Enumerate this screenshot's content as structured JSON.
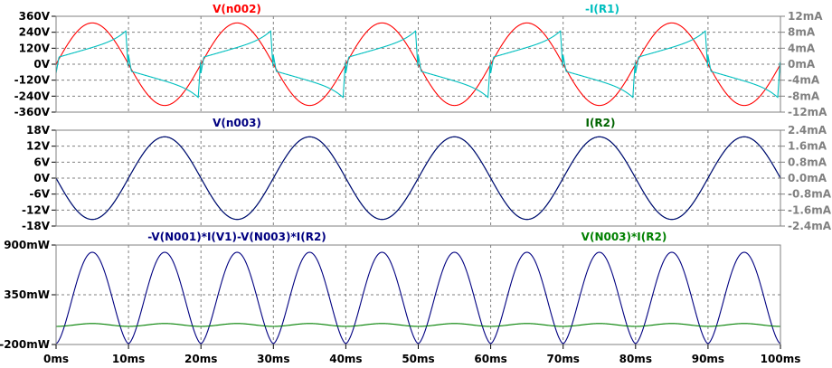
{
  "colors": {
    "red": "#ff0000",
    "cyan": "#00bfbf",
    "navy": "#000080",
    "green": "#008000",
    "darkgreen": "#006400",
    "grid": "#808080",
    "frame": "#808080",
    "bg": "#ffffff"
  },
  "x_axis": {
    "range": [
      0,
      100
    ],
    "unit": "ms",
    "ticks": [
      "0ms",
      "10ms",
      "20ms",
      "30ms",
      "40ms",
      "50ms",
      "60ms",
      "70ms",
      "80ms",
      "90ms",
      "100ms"
    ]
  },
  "chart_data": [
    {
      "type": "line",
      "x_range_ms": [
        0,
        100
      ],
      "left_axis": {
        "range": [
          -360,
          360
        ],
        "ticks": [
          "360V",
          "240V",
          "120V",
          "0V",
          "-120V",
          "-240V",
          "-360V"
        ]
      },
      "right_axis": {
        "range": [
          -12,
          12
        ],
        "ticks": [
          "12mA",
          "8mA",
          "4mA",
          "0mA",
          "-4mA",
          "-8mA",
          "-12mA"
        ]
      },
      "grid": true,
      "series": [
        {
          "name": "V(n002)",
          "axis": "left",
          "shape": "sine",
          "amplitude": 310,
          "freq_hz": 50,
          "phase_deg": 0,
          "color": "red",
          "label_color": "red"
        },
        {
          "name": "-I(R1)",
          "axis": "right",
          "shape": "rectifier-current",
          "peak_ma": 9,
          "freq_hz": 50,
          "color": "cyan",
          "label_color": "cyan"
        }
      ]
    },
    {
      "type": "line",
      "x_range_ms": [
        0,
        100
      ],
      "left_axis": {
        "range": [
          -18,
          18
        ],
        "ticks": [
          "18V",
          "12V",
          "6V",
          "0V",
          "-6V",
          "-12V",
          "-18V"
        ]
      },
      "right_axis": {
        "range": [
          -2.4,
          2.4
        ],
        "ticks": [
          "2.4mA",
          "1.6mA",
          "0.8mA",
          "0.0mA",
          "-0.8mA",
          "-1.6mA",
          "-2.4mA"
        ]
      },
      "grid": true,
      "series": [
        {
          "name": "V(n003)",
          "axis": "left",
          "shape": "sine",
          "amplitude": 15.5,
          "freq_hz": 50,
          "phase_deg": 180,
          "color": "green",
          "label_color": "navy"
        },
        {
          "name": "I(R2)",
          "axis": "right",
          "shape": "sine",
          "amplitude": 2.07,
          "freq_hz": 50,
          "phase_deg": 180,
          "color": "navy",
          "label_color": "darkgreen"
        }
      ]
    },
    {
      "type": "line",
      "x_range_ms": [
        0,
        100
      ],
      "left_axis": {
        "range": [
          -200,
          900
        ],
        "ticks": [
          "900mW",
          "350mW",
          "-200mW"
        ]
      },
      "grid": true,
      "series": [
        {
          "name": "-V(N001)*I(V1)-V(N003)*I(R2)",
          "axis": "left",
          "shape": "rectified-power",
          "peak_mw": 820,
          "min_mw": -190,
          "freq_hz": 100,
          "color": "navy",
          "label_color": "navy"
        },
        {
          "name": "V(N003)*I(R2)",
          "axis": "left",
          "shape": "sin-squared",
          "mean_mw": 16,
          "peak_mw": 32,
          "freq_hz": 100,
          "color": "green",
          "label_color": "green"
        }
      ]
    }
  ]
}
